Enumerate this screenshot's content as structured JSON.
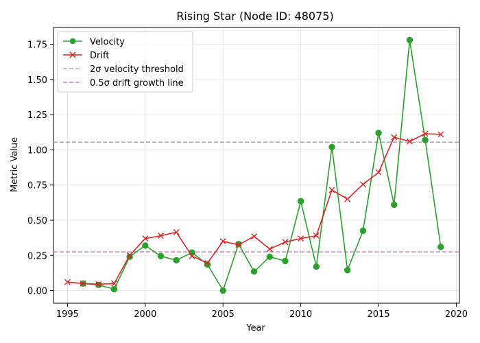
{
  "chart_data": {
    "type": "line",
    "title": "Rising Star (Node ID: 48075)",
    "xlabel": "Year",
    "ylabel": "Metric Value",
    "xlim": [
      1994.1,
      2020.2
    ],
    "ylim": [
      -0.09,
      1.87
    ],
    "xticks": [
      1995,
      2000,
      2005,
      2010,
      2015,
      2020
    ],
    "yticks": [
      0.0,
      0.25,
      0.5,
      0.75,
      1.0,
      1.25,
      1.5,
      1.75
    ],
    "ytick_labels": [
      "0.00",
      "0.25",
      "0.50",
      "0.75",
      "1.00",
      "1.25",
      "1.50",
      "1.75"
    ],
    "grid": true,
    "legend_position": "upper left",
    "series": [
      {
        "name": "Velocity",
        "color": "#2ca02c",
        "marker": "circle",
        "x": [
          1996,
          1997,
          1998,
          1999,
          2000,
          2001,
          2002,
          2003,
          2004,
          2005,
          2006,
          2007,
          2008,
          2009,
          2010,
          2011,
          2012,
          2013,
          2014,
          2015,
          2016,
          2017,
          2018,
          2019
        ],
        "y": [
          0.05,
          0.04,
          0.01,
          0.24,
          0.32,
          0.245,
          0.215,
          0.27,
          0.185,
          0.0,
          0.33,
          0.135,
          0.24,
          0.21,
          0.635,
          0.17,
          1.02,
          0.145,
          0.425,
          1.12,
          0.61,
          1.78,
          1.07,
          0.31
        ]
      },
      {
        "name": "Drift",
        "color": "#d62728",
        "marker": "x",
        "x": [
          1995,
          1996,
          1997,
          1998,
          1999,
          2000,
          2001,
          2002,
          2003,
          2004,
          2005,
          2006,
          2007,
          2008,
          2009,
          2010,
          2011,
          2012,
          2013,
          2014,
          2015,
          2016,
          2017,
          2018,
          2019
        ],
        "y": [
          0.06,
          0.05,
          0.045,
          0.05,
          0.25,
          0.37,
          0.39,
          0.415,
          0.245,
          0.195,
          0.35,
          0.325,
          0.385,
          0.295,
          0.345,
          0.37,
          0.39,
          0.715,
          0.65,
          0.755,
          0.84,
          1.09,
          1.06,
          1.115,
          1.11
        ]
      }
    ],
    "reference_lines": [
      {
        "name": "2σ velocity threshold",
        "y": 1.055,
        "color": "#aaaaaa",
        "style": "dashed"
      },
      {
        "name": "0.5σ drift growth line",
        "y": 0.275,
        "color": "#c27cc4",
        "style": "dashed"
      }
    ]
  }
}
